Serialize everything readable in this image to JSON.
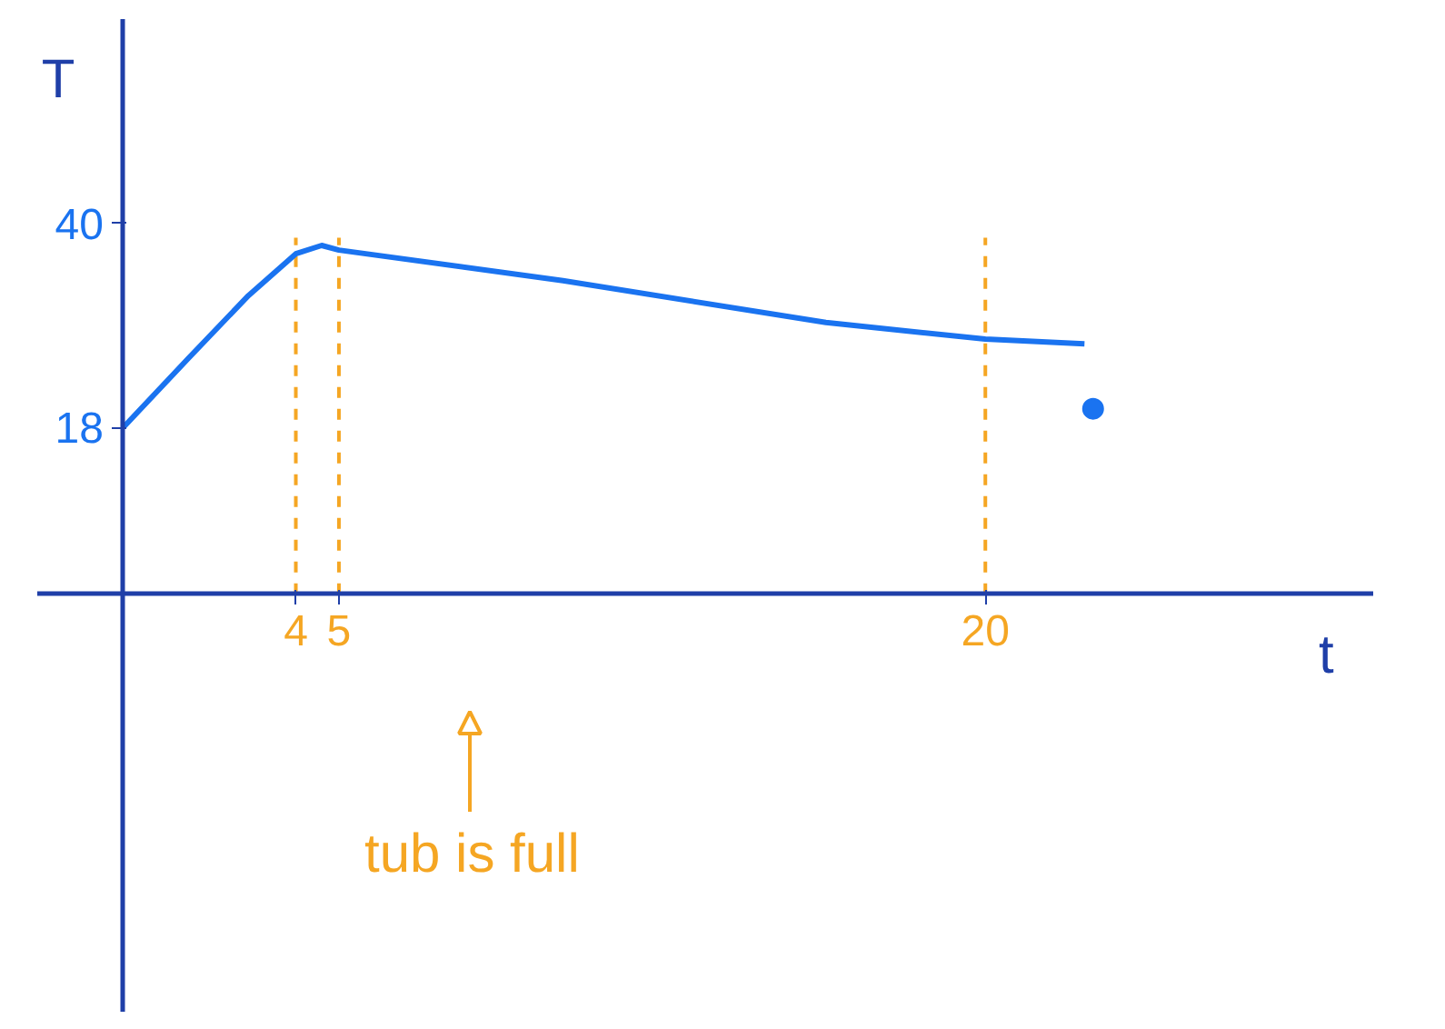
{
  "chart_data": {
    "type": "line",
    "xlabel": "t",
    "ylabel": "T",
    "x": [
      0,
      1.5,
      2.9,
      4,
      4.6,
      5,
      10.2,
      16.3,
      20,
      22.3
    ],
    "series": [
      {
        "color": "#1a73f0",
        "values": [
          18,
          25.4,
          32.2,
          36.7,
          37.6,
          37.1,
          33.8,
          29.3,
          27.5,
          27
        ]
      },
      {
        "type": "scatter",
        "color": "#1a73f0",
        "x": [
          22.5
        ],
        "values": [
          20
        ]
      }
    ],
    "xlim": [
      -2,
      29
    ],
    "ylim": [
      -45,
      62
    ],
    "xticks": [
      4,
      5,
      20
    ],
    "yticks": [
      18,
      40
    ],
    "ref_lines": [
      {
        "axis": "x",
        "value": 4,
        "color": "#f5a623",
        "line_style": "dashed"
      },
      {
        "axis": "x",
        "value": 5,
        "color": "#f5a623",
        "line_style": "dashed"
      },
      {
        "axis": "x",
        "value": 20,
        "color": "#f5a623",
        "line_style": "dashed"
      }
    ],
    "annotations": [
      "tub is full"
    ],
    "grid": false,
    "line_style": "solid"
  }
}
